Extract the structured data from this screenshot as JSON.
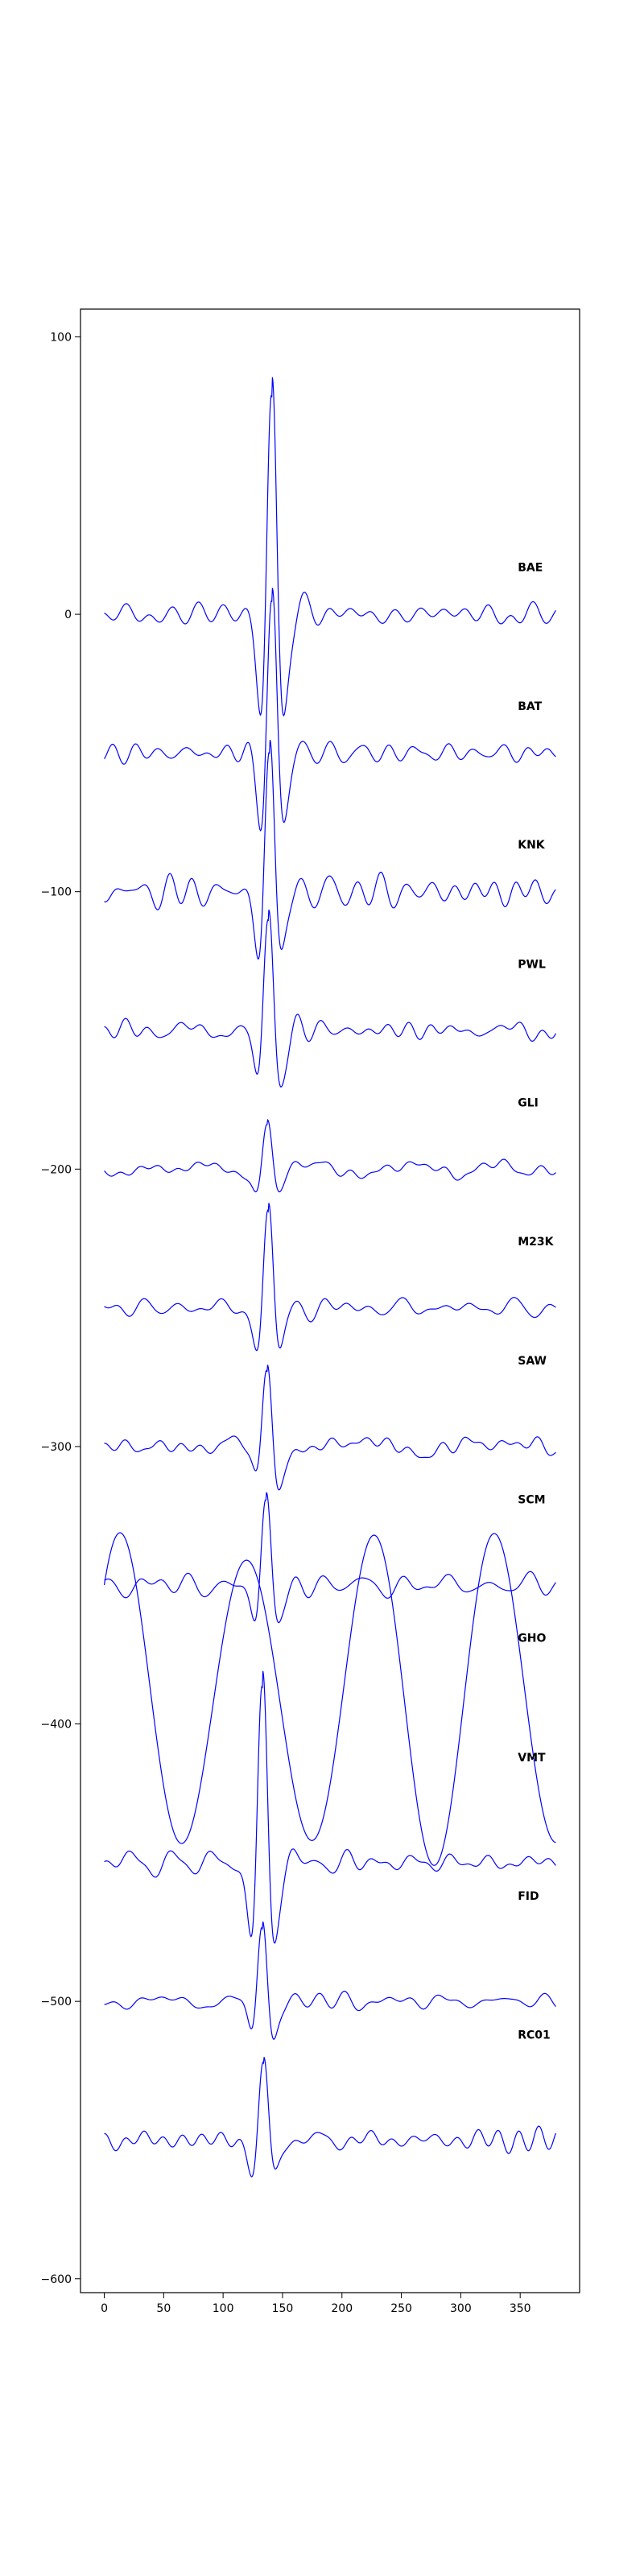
{
  "chart_data": {
    "type": "line",
    "title": "",
    "xlabel": "",
    "ylabel": "",
    "xlim": [
      -20,
      400
    ],
    "ylim": [
      -605,
      110
    ],
    "x_ticks": [
      0,
      50,
      100,
      150,
      200,
      250,
      300,
      350
    ],
    "y_ticks": [
      100,
      0,
      -100,
      -200,
      -300,
      -400,
      -500,
      -600
    ],
    "x_tick_labels": [
      "0",
      "50",
      "100",
      "150",
      "200",
      "250",
      "300",
      "350"
    ],
    "y_tick_labels": [
      "100",
      "0",
      "−100",
      "−200",
      "−300",
      "−400",
      "−500",
      "−600"
    ],
    "grid": false,
    "line_color": "#0000ff",
    "x_range": [
      0,
      380
    ],
    "series": [
      {
        "name": "BAE",
        "label_y": 17,
        "baseline": 0,
        "peak_x": 141,
        "peak_amp": 80,
        "type": "wavelet",
        "seed": 11
      },
      {
        "name": "BAT",
        "label_y": -33,
        "baseline": -50,
        "peak_x": 141,
        "peak_amp": 50,
        "type": "wavelet",
        "seed": 23
      },
      {
        "name": "KNK",
        "label_y": -83,
        "baseline": -100,
        "peak_x": 139,
        "peak_amp": 50,
        "type": "wavelet",
        "seed": 37
      },
      {
        "name": "PWL",
        "label_y": -126,
        "baseline": -150,
        "peak_x": 138,
        "peak_amp": 40,
        "type": "wavelet",
        "seed": 41
      },
      {
        "name": "GLI",
        "label_y": -176,
        "baseline": -200,
        "peak_x": 137,
        "peak_amp": 17,
        "type": "wavelet",
        "seed": 53
      },
      {
        "name": "M23K",
        "label_y": -226,
        "baseline": -250,
        "peak_x": 138,
        "peak_amp": 34,
        "type": "wavelet",
        "seed": 67
      },
      {
        "name": "SAW",
        "label_y": -269,
        "baseline": -300,
        "peak_x": 137,
        "peak_amp": 30,
        "type": "wavelet",
        "seed": 71
      },
      {
        "name": "SCM",
        "label_y": -319,
        "baseline": -350,
        "peak_x": 136,
        "peak_amp": 28,
        "type": "wavelet",
        "seed": 83
      },
      {
        "name": "GHO",
        "label_y": -369,
        "baseline": -390,
        "peak_x": 0,
        "peak_amp": 55,
        "type": "slow",
        "seed": 97
      },
      {
        "name": "VMT",
        "label_y": -412,
        "baseline": -450,
        "peak_x": 133,
        "peak_amp": 62,
        "type": "wavelet",
        "seed": 101
      },
      {
        "name": "FID",
        "label_y": -462,
        "baseline": -500,
        "peak_x": 133,
        "peak_amp": 30,
        "type": "wavelet",
        "seed": 113
      },
      {
        "name": "RC01",
        "label_y": -512,
        "baseline": -550,
        "peak_x": 134,
        "peak_amp": 25,
        "type": "wavelet",
        "seed": 127
      }
    ]
  }
}
